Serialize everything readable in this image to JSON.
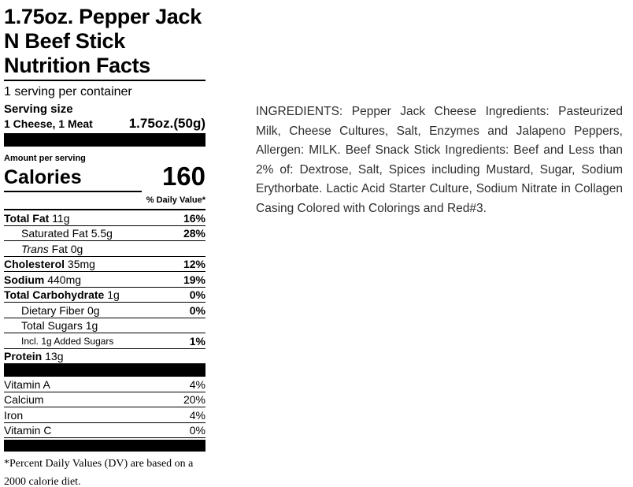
{
  "label": {
    "title_lines": [
      "1.75oz. Pepper Jack",
      "N Beef Stick",
      "Nutrition Facts"
    ],
    "servings_per_container": "1 serving per container",
    "serving_size_label": "Serving size",
    "serving_size_desc": "1 Cheese, 1 Meat",
    "serving_size_amount": "1.75oz.(50g)",
    "amount_per_serving": "Amount per serving",
    "calories_label": "Calories",
    "calories_value": "160",
    "daily_value_header": "% Daily Value*",
    "nutrient_rows": [
      {
        "bold": "Total Fat",
        "rest": " 11g",
        "pct": "16%",
        "indent": 0
      },
      {
        "rest": "Saturated Fat 5.5g",
        "pct": "28%",
        "indent": 1
      },
      {
        "italic": "Trans",
        "rest": " Fat 0g",
        "pct": "",
        "indent": 1
      },
      {
        "bold": "Cholesterol",
        "rest": " 35mg",
        "pct": "12%",
        "indent": 0
      },
      {
        "bold": "Sodium",
        "rest": " 440mg",
        "pct": "19%",
        "indent": 0
      },
      {
        "bold": "Total Carbohydrate",
        "rest": " 1g",
        "pct": "0%",
        "indent": 0
      },
      {
        "rest": "Dietary Fiber 0g",
        "pct": "0%",
        "indent": 1
      },
      {
        "rest": "Total Sugars 1g",
        "pct": "",
        "indent": 1
      },
      {
        "rest": "Incl. 1g Added Sugars",
        "pct": "1%",
        "indent": 1,
        "small": true
      },
      {
        "bold": "Protein",
        "rest": " 13g",
        "pct": "",
        "indent": 0,
        "no_rule": true
      }
    ],
    "vitamin_rows": [
      {
        "name": "Vitamin A",
        "pct": "4%"
      },
      {
        "name": "Calcium",
        "pct": "20%"
      },
      {
        "name": "Iron",
        "pct": "4%"
      },
      {
        "name": "Vitamin C",
        "pct": "0%"
      }
    ],
    "footnote": "*Percent Daily Values (DV) are based on a 2000 calorie diet."
  },
  "ingredients": {
    "text": "INGREDIENTS: Pepper Jack Cheese Ingredients: Pasteurized Milk, Cheese Cultures, Salt, Enzymes and Jalapeno Peppers, Allergen: MILK. Beef Snack Stick Ingredients: Beef and Less than 2% of: Dextrose, Salt, Spices including Mustard, Sugar, Sodium Erythorbate. Lactic Acid Starter Culture, Sodium Nitrate in Collagen Casing Colored with Colorings and Red#3."
  },
  "colors": {
    "label_text": "#000000",
    "ingredients_text": "#2e2e2e",
    "background": "#ffffff"
  }
}
